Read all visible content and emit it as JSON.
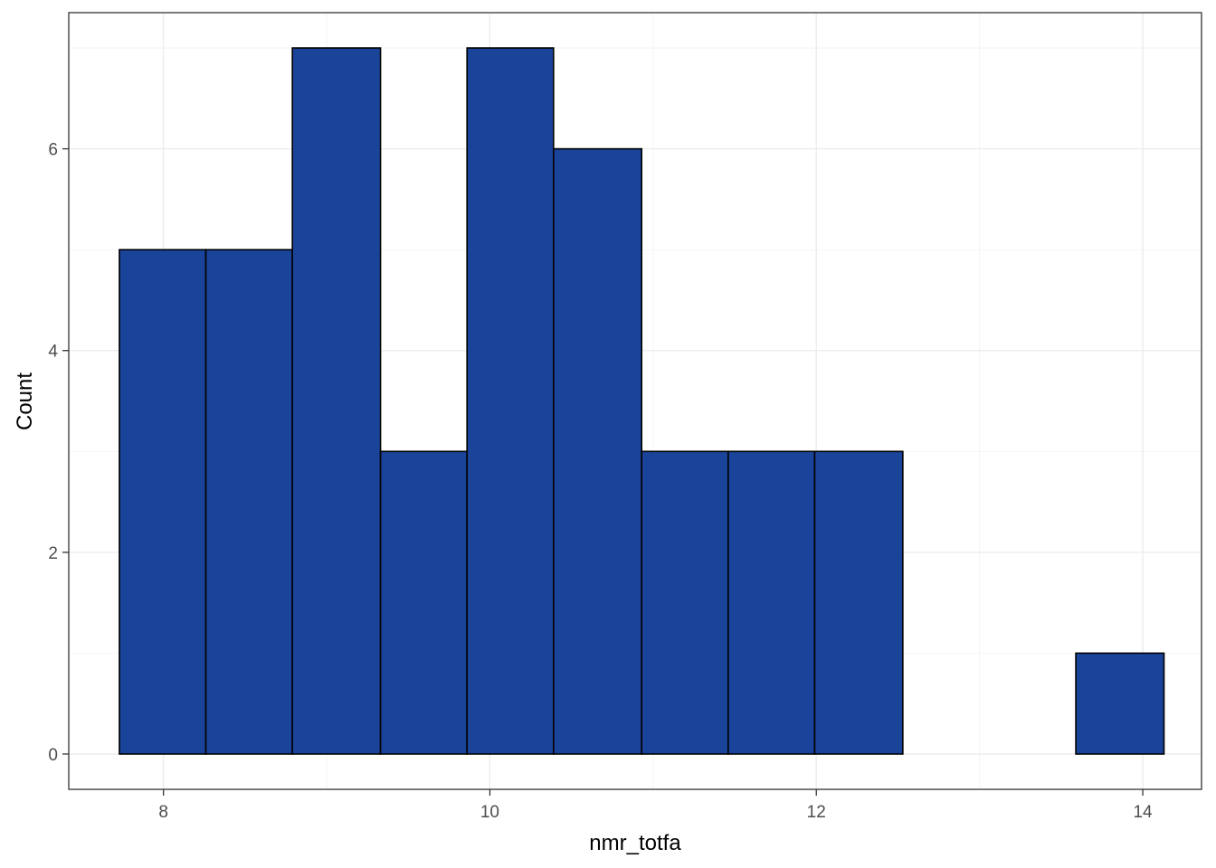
{
  "chart_data": {
    "type": "bar",
    "subtype": "histogram",
    "xlabel": "nmr_totfa",
    "ylabel": "Count",
    "xlim": [
      7.42,
      14.36
    ],
    "ylim": [
      -0.35,
      7.35
    ],
    "x_ticks": [
      8,
      10,
      12,
      14
    ],
    "y_ticks": [
      0,
      2,
      4,
      6
    ],
    "grid": true,
    "bar_color": "#1a449a",
    "bar_outline": "#000000",
    "bins": [
      {
        "x0": 7.73,
        "x1": 8.26,
        "count": 5
      },
      {
        "x0": 8.26,
        "x1": 8.79,
        "count": 5
      },
      {
        "x0": 8.79,
        "x1": 9.33,
        "count": 7
      },
      {
        "x0": 9.33,
        "x1": 9.86,
        "count": 3
      },
      {
        "x0": 9.86,
        "x1": 10.39,
        "count": 7
      },
      {
        "x0": 10.39,
        "x1": 10.93,
        "count": 6
      },
      {
        "x0": 10.93,
        "x1": 11.46,
        "count": 3
      },
      {
        "x0": 11.46,
        "x1": 11.99,
        "count": 3
      },
      {
        "x0": 11.99,
        "x1": 12.53,
        "count": 3
      },
      {
        "x0": 12.53,
        "x1": 13.06,
        "count": 0
      },
      {
        "x0": 13.06,
        "x1": 13.59,
        "count": 0
      },
      {
        "x0": 13.59,
        "x1": 14.13,
        "count": 1
      }
    ]
  }
}
